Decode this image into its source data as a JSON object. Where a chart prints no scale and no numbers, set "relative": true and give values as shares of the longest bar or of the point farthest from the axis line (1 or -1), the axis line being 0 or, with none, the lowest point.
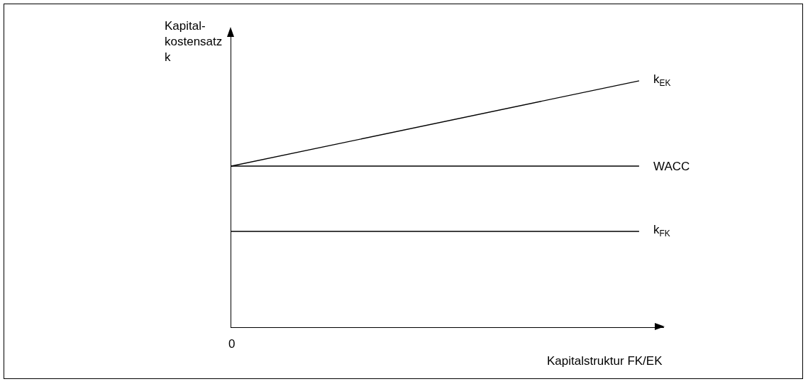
{
  "chart_data": {
    "type": "line",
    "relative": true,
    "ylabel": "Kapital-\nkostensatz\nk",
    "xlabel": "Kapitalstruktur FK/EK",
    "categories": [
      null,
      null
    ],
    "annotations": [
      "0"
    ],
    "legend": false,
    "marker": "none",
    "line_style": "solid",
    "series": [
      {
        "name": "k$_{EK}$",
        "color": "#000000",
        "values": [
          0.654,
          1
        ]
      },
      {
        "name": "WACC",
        "color": "#000000",
        "values": [
          0.654,
          0.654
        ]
      },
      {
        "name": "k$_{FK}$",
        "color": "#000000",
        "values": [
          0.389,
          0.389
        ]
      }
    ]
  }
}
